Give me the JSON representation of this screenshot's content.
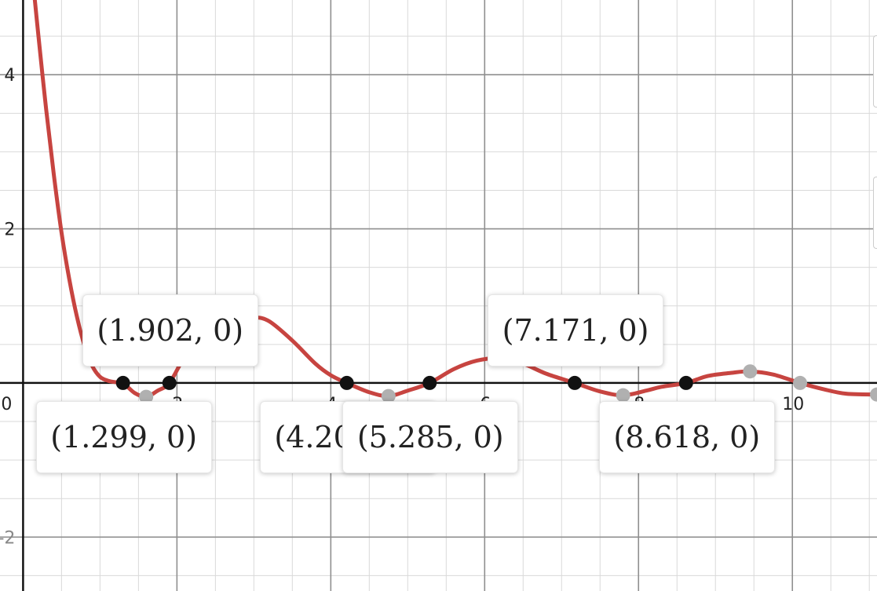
{
  "chart_data": {
    "type": "line",
    "x_range": [
      -0.3,
      11.1
    ],
    "y_range": [
      -2.7,
      4.97
    ],
    "grid": true,
    "x_ticks": [
      {
        "value": 0,
        "label": "0"
      },
      {
        "value": 2,
        "label": "2"
      },
      {
        "value": 4,
        "label": "4"
      },
      {
        "value": 6,
        "label": "6"
      },
      {
        "value": 8,
        "label": "8"
      },
      {
        "value": 10,
        "label": "10"
      }
    ],
    "y_ticks": [
      {
        "value": 4,
        "label": "4"
      },
      {
        "value": 2,
        "label": "2"
      },
      {
        "value": -2,
        "label": "-2"
      }
    ],
    "series": [
      {
        "color": "#c74440",
        "x": [
          0.12,
          0.2,
          0.3,
          0.4,
          0.5,
          0.6,
          0.7,
          0.8,
          0.9,
          1.0,
          1.1,
          1.2,
          1.299,
          1.45,
          1.6,
          1.75,
          1.902,
          2.1,
          2.3,
          2.5,
          2.75,
          3.0,
          3.2,
          3.5,
          3.8,
          4.0,
          4.208,
          4.5,
          4.75,
          5.0,
          5.285,
          5.6,
          5.9,
          6.2,
          6.5,
          6.8,
          7.171,
          7.5,
          7.8,
          8.1,
          8.3,
          8.618,
          8.9,
          9.2,
          9.45,
          9.75,
          10.1,
          10.4,
          10.7,
          11.1
        ],
        "y": [
          5.3,
          4.5,
          3.55,
          2.7,
          1.95,
          1.35,
          0.86,
          0.48,
          0.22,
          0.08,
          0.03,
          0.01,
          0.0,
          -0.13,
          -0.18,
          -0.1,
          0.0,
          0.34,
          0.58,
          0.72,
          0.82,
          0.85,
          0.8,
          0.55,
          0.25,
          0.1,
          0.0,
          -0.12,
          -0.17,
          -0.1,
          0.0,
          0.18,
          0.29,
          0.32,
          0.25,
          0.12,
          0.0,
          -0.11,
          -0.16,
          -0.1,
          -0.05,
          0.0,
          0.09,
          0.13,
          0.15,
          0.11,
          0.0,
          -0.08,
          -0.14,
          -0.15
        ]
      }
    ],
    "zeros": [
      {
        "x": 1.299,
        "y": 0,
        "label": "(1.299, 0)",
        "callout": "below"
      },
      {
        "x": 1.902,
        "y": 0,
        "label": "(1.902, 0)",
        "callout": "above"
      },
      {
        "x": 4.208,
        "y": 0,
        "label": "(4.208, 0)",
        "callout": "below"
      },
      {
        "x": 5.285,
        "y": 0,
        "label": "(5.285, 0)",
        "callout": "below"
      },
      {
        "x": 7.171,
        "y": 0,
        "label": "(7.171, 0)",
        "callout": "above"
      },
      {
        "x": 8.618,
        "y": 0,
        "label": "(8.618, 0)",
        "callout": "below"
      }
    ],
    "extrema": [
      {
        "x": 1.6,
        "y": -0.18
      },
      {
        "x": 4.75,
        "y": -0.17
      },
      {
        "x": 6.2,
        "y": 0.32
      },
      {
        "x": 7.8,
        "y": -0.16
      },
      {
        "x": 9.45,
        "y": 0.15
      },
      {
        "x": 10.1,
        "y": 0.0
      },
      {
        "x": 11.1,
        "y": -0.15
      }
    ]
  }
}
